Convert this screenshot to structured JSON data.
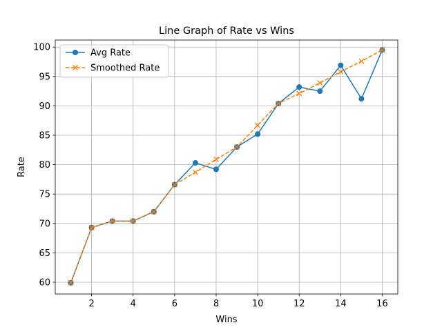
{
  "chart_data": {
    "type": "line",
    "title": "Line Graph of Rate vs Wins",
    "xlabel": "Wins",
    "ylabel": "Rate",
    "xlim": [
      0.25,
      16.75
    ],
    "ylim": [
      58.0,
      101.2
    ],
    "xticks": [
      2,
      4,
      6,
      8,
      10,
      12,
      14,
      16
    ],
    "yticks": [
      60,
      65,
      70,
      75,
      80,
      85,
      90,
      95,
      100
    ],
    "grid": true,
    "legend_position": "top-left",
    "x": [
      1,
      2,
      3,
      4,
      5,
      6,
      7,
      8,
      9,
      10,
      11,
      12,
      13,
      14,
      15,
      16
    ],
    "series": [
      {
        "name": "Avg Rate",
        "color": "#1f77b4",
        "style": "solid",
        "marker": "circle",
        "values": [
          59.9,
          69.3,
          70.4,
          70.4,
          72.0,
          76.6,
          80.3,
          79.2,
          83.0,
          85.2,
          90.4,
          93.2,
          92.5,
          96.9,
          91.2,
          99.5
        ]
      },
      {
        "name": "Smoothed Rate",
        "color": "#ff7f0e",
        "style": "dashed",
        "marker": "x",
        "values": [
          59.9,
          69.3,
          70.4,
          70.4,
          72.0,
          76.6,
          78.7,
          80.9,
          83.0,
          86.7,
          90.4,
          92.1,
          93.9,
          95.8,
          97.6,
          99.5
        ]
      }
    ]
  }
}
